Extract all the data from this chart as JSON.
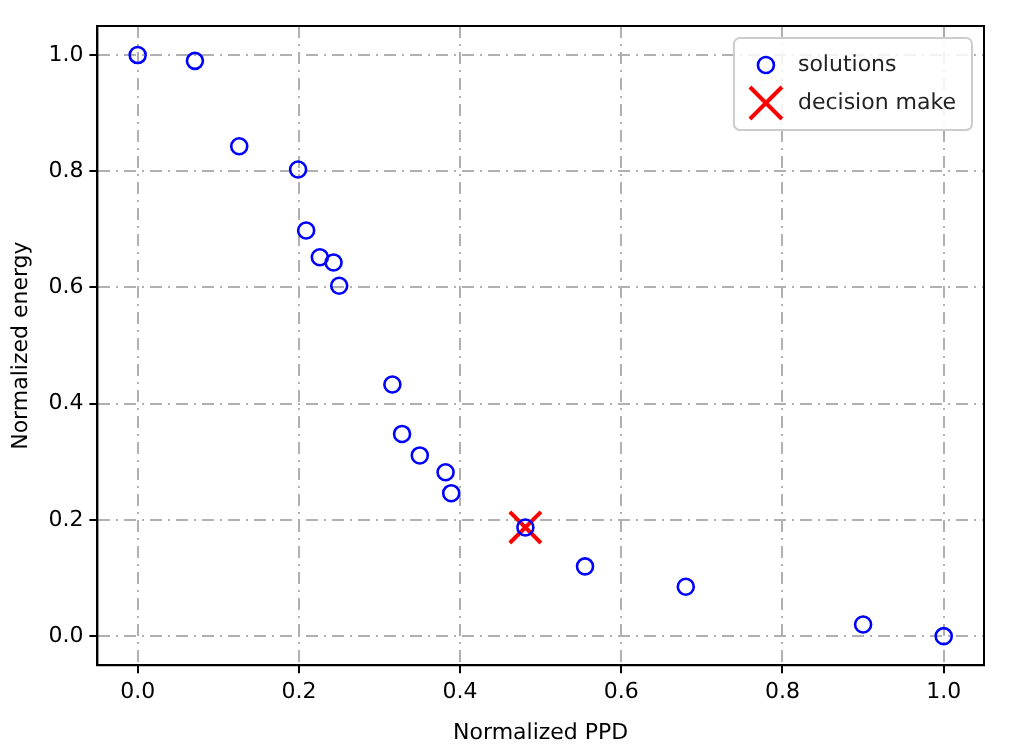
{
  "chart_data": {
    "type": "scatter",
    "xlabel": "Normalized PPD",
    "ylabel": "Normalized energy",
    "xlim": [
      -0.05,
      1.05
    ],
    "ylim": [
      -0.05,
      1.05
    ],
    "xticks": [
      {
        "value": 0,
        "label": "0.0"
      },
      {
        "value": 0.2,
        "label": "0.2"
      },
      {
        "value": 0.4,
        "label": "0.4"
      },
      {
        "value": 0.6,
        "label": "0.6"
      },
      {
        "value": 0.8,
        "label": "0.8"
      },
      {
        "value": 1,
        "label": "1.0"
      }
    ],
    "yticks": [
      {
        "value": 0,
        "label": "0.0"
      },
      {
        "value": 0.2,
        "label": "0.2"
      },
      {
        "value": 0.4,
        "label": "0.4"
      },
      {
        "value": 0.6,
        "label": "0.6"
      },
      {
        "value": 0.8,
        "label": "0.8"
      },
      {
        "value": 1,
        "label": "1.0"
      }
    ],
    "grid": true,
    "legend": "top right",
    "series": [
      {
        "name": "solutions",
        "color": "#0000ff",
        "marker": "circle",
        "x": [
          0,
          0.071,
          0.126,
          0.199,
          0.209,
          0.226,
          0.243,
          0.25,
          0.316,
          0.328,
          0.35,
          0.382,
          0.389,
          0.481,
          0.555,
          0.68,
          0.9,
          1.0
        ],
        "values": [
          1.0,
          0.99,
          0.843,
          0.803,
          0.698,
          0.652,
          0.643,
          0.603,
          0.433,
          0.348,
          0.311,
          0.282,
          0.246,
          0.187,
          0.12,
          0.085,
          0.02,
          0
        ]
      },
      {
        "name": "decision make",
        "color": "#ff0000",
        "marker": "cross",
        "x": [
          0.481
        ],
        "values": [
          0.187
        ]
      }
    ]
  }
}
